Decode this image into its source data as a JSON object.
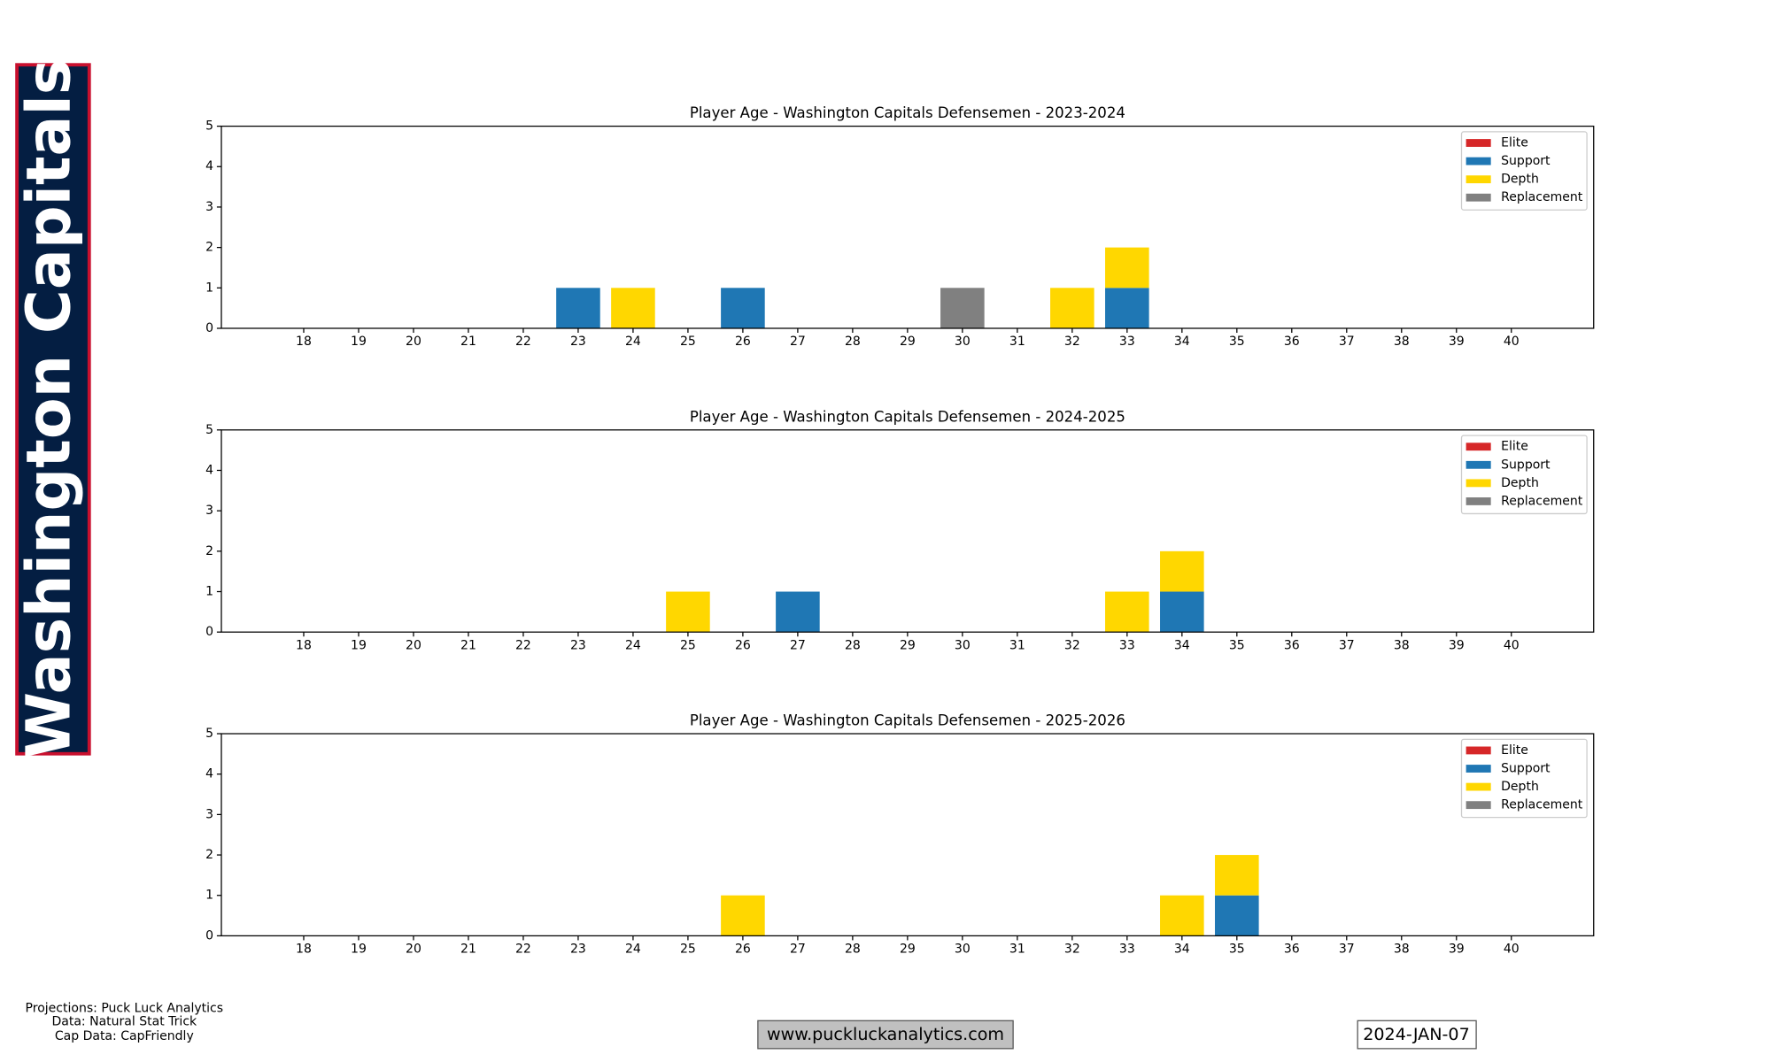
{
  "banner": "Washington Capitals",
  "credits": [
    "Projections: Puck Luck Analytics",
    "Data: Natural Stat Trick",
    "Cap Data: CapFriendly"
  ],
  "website": "www.puckluckanalytics.com",
  "date": "2024-JAN-07",
  "chart_data": [
    {
      "type": "bar",
      "stacked": true,
      "title": "Player Age - Washington Capitals Defensemen - 2023-2024",
      "x": [
        18,
        19,
        20,
        21,
        22,
        23,
        24,
        25,
        26,
        27,
        28,
        29,
        30,
        31,
        32,
        33,
        34,
        35,
        36,
        37,
        38,
        39,
        40
      ],
      "xlim": [
        16.5,
        41.5
      ],
      "xticks": [
        18,
        19,
        20,
        21,
        22,
        23,
        24,
        25,
        26,
        27,
        28,
        29,
        30,
        31,
        32,
        33,
        34,
        35,
        36,
        37,
        38,
        39,
        40
      ],
      "ylim": [
        0,
        5
      ],
      "yticks": [
        0,
        1,
        2,
        3,
        4,
        5
      ],
      "legend": "upper right",
      "series": [
        {
          "name": "Elite",
          "color": "#d62728",
          "values": [
            0,
            0,
            0,
            0,
            0,
            0,
            0,
            0,
            0,
            0,
            0,
            0,
            0,
            0,
            0,
            0,
            0,
            0,
            0,
            0,
            0,
            0,
            0
          ]
        },
        {
          "name": "Support",
          "color": "#1f77b4",
          "values": [
            0,
            0,
            0,
            0,
            0,
            1,
            0,
            0,
            1,
            0,
            0,
            0,
            0,
            0,
            0,
            1,
            0,
            0,
            0,
            0,
            0,
            0,
            0
          ]
        },
        {
          "name": "Depth",
          "color": "#ffd700",
          "values": [
            0,
            0,
            0,
            0,
            0,
            0,
            1,
            0,
            0,
            0,
            0,
            0,
            0,
            0,
            1,
            1,
            0,
            0,
            0,
            0,
            0,
            0,
            0
          ]
        },
        {
          "name": "Replacement",
          "color": "#808080",
          "values": [
            0,
            0,
            0,
            0,
            0,
            0,
            0,
            0,
            0,
            0,
            0,
            0,
            1,
            0,
            0,
            0,
            0,
            0,
            0,
            0,
            0,
            0,
            0
          ]
        }
      ]
    },
    {
      "type": "bar",
      "stacked": true,
      "title": "Player Age - Washington Capitals Defensemen - 2024-2025",
      "x": [
        18,
        19,
        20,
        21,
        22,
        23,
        24,
        25,
        26,
        27,
        28,
        29,
        30,
        31,
        32,
        33,
        34,
        35,
        36,
        37,
        38,
        39,
        40
      ],
      "xlim": [
        16.5,
        41.5
      ],
      "xticks": [
        18,
        19,
        20,
        21,
        22,
        23,
        24,
        25,
        26,
        27,
        28,
        29,
        30,
        31,
        32,
        33,
        34,
        35,
        36,
        37,
        38,
        39,
        40
      ],
      "ylim": [
        0,
        5
      ],
      "yticks": [
        0,
        1,
        2,
        3,
        4,
        5
      ],
      "legend": "upper right",
      "series": [
        {
          "name": "Elite",
          "color": "#d62728",
          "values": [
            0,
            0,
            0,
            0,
            0,
            0,
            0,
            0,
            0,
            0,
            0,
            0,
            0,
            0,
            0,
            0,
            0,
            0,
            0,
            0,
            0,
            0,
            0
          ]
        },
        {
          "name": "Support",
          "color": "#1f77b4",
          "values": [
            0,
            0,
            0,
            0,
            0,
            0,
            0,
            0,
            0,
            1,
            0,
            0,
            0,
            0,
            0,
            0,
            1,
            0,
            0,
            0,
            0,
            0,
            0
          ]
        },
        {
          "name": "Depth",
          "color": "#ffd700",
          "values": [
            0,
            0,
            0,
            0,
            0,
            0,
            0,
            1,
            0,
            0,
            0,
            0,
            0,
            0,
            0,
            1,
            1,
            0,
            0,
            0,
            0,
            0,
            0
          ]
        },
        {
          "name": "Replacement",
          "color": "#808080",
          "values": [
            0,
            0,
            0,
            0,
            0,
            0,
            0,
            0,
            0,
            0,
            0,
            0,
            0,
            0,
            0,
            0,
            0,
            0,
            0,
            0,
            0,
            0,
            0
          ]
        }
      ]
    },
    {
      "type": "bar",
      "stacked": true,
      "title": "Player Age - Washington Capitals Defensemen - 2025-2026",
      "x": [
        18,
        19,
        20,
        21,
        22,
        23,
        24,
        25,
        26,
        27,
        28,
        29,
        30,
        31,
        32,
        33,
        34,
        35,
        36,
        37,
        38,
        39,
        40
      ],
      "xlim": [
        16.5,
        41.5
      ],
      "xticks": [
        18,
        19,
        20,
        21,
        22,
        23,
        24,
        25,
        26,
        27,
        28,
        29,
        30,
        31,
        32,
        33,
        34,
        35,
        36,
        37,
        38,
        39,
        40
      ],
      "ylim": [
        0,
        5
      ],
      "yticks": [
        0,
        1,
        2,
        3,
        4,
        5
      ],
      "legend": "upper right",
      "series": [
        {
          "name": "Elite",
          "color": "#d62728",
          "values": [
            0,
            0,
            0,
            0,
            0,
            0,
            0,
            0,
            0,
            0,
            0,
            0,
            0,
            0,
            0,
            0,
            0,
            0,
            0,
            0,
            0,
            0,
            0
          ]
        },
        {
          "name": "Support",
          "color": "#1f77b4",
          "values": [
            0,
            0,
            0,
            0,
            0,
            0,
            0,
            0,
            0,
            0,
            0,
            0,
            0,
            0,
            0,
            0,
            0,
            1,
            0,
            0,
            0,
            0,
            0
          ]
        },
        {
          "name": "Depth",
          "color": "#ffd700",
          "values": [
            0,
            0,
            0,
            0,
            0,
            0,
            0,
            0,
            1,
            0,
            0,
            0,
            0,
            0,
            0,
            0,
            1,
            1,
            0,
            0,
            0,
            0,
            0
          ]
        },
        {
          "name": "Replacement",
          "color": "#808080",
          "values": [
            0,
            0,
            0,
            0,
            0,
            0,
            0,
            0,
            0,
            0,
            0,
            0,
            0,
            0,
            0,
            0,
            0,
            0,
            0,
            0,
            0,
            0,
            0
          ]
        }
      ]
    }
  ]
}
